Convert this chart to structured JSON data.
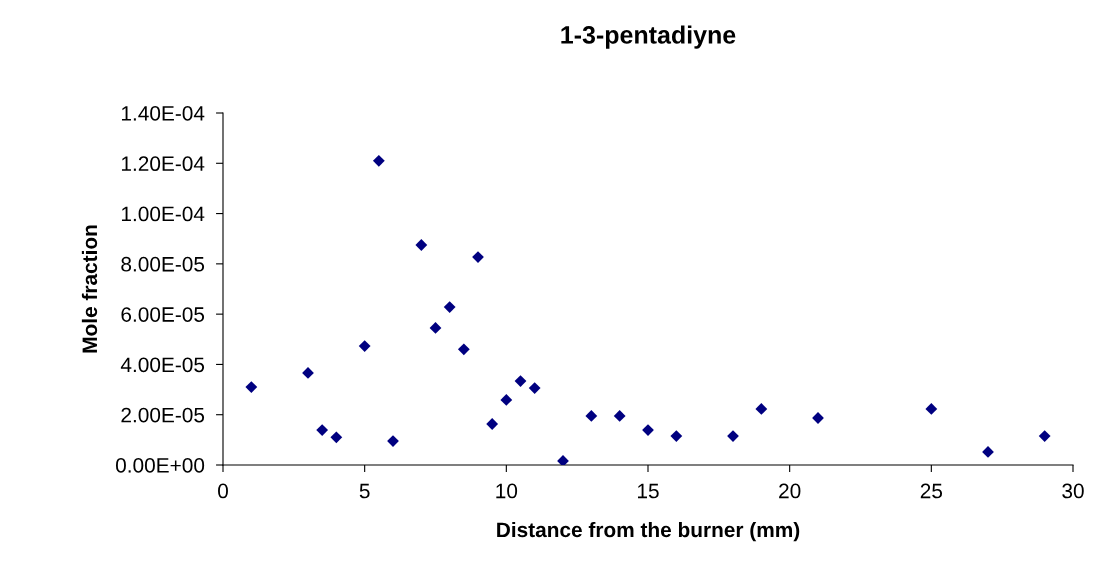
{
  "chart_data": {
    "type": "scatter",
    "title": "1-3-pentadiyne",
    "xlabel": "Distance from the burner (mm)",
    "ylabel": "Mole fraction",
    "x": [
      1,
      3,
      3.5,
      4,
      5,
      5.5,
      6,
      7,
      7.5,
      8,
      8.5,
      9,
      9.5,
      10,
      10.5,
      11,
      12,
      13,
      14,
      15,
      16,
      18,
      19,
      21,
      25,
      27,
      29
    ],
    "series": [
      {
        "color": "#000080",
        "values": [
          3.1e-05,
          3.66e-05,
          1.39e-05,
          1.1e-05,
          4.73e-05,
          0.000121,
          9.5e-06,
          8.75e-05,
          5.45e-05,
          6.28e-05,
          4.6e-05,
          8.27e-05,
          1.63e-05,
          2.59e-05,
          3.34e-05,
          3.06e-05,
          1.6e-06,
          1.95e-05,
          1.95e-05,
          1.39e-05,
          1.15e-05,
          1.15e-05,
          2.23e-05,
          1.87e-05,
          2.23e-05,
          5.2e-06,
          1.15e-05
        ]
      }
    ],
    "xlim": [
      0,
      30
    ],
    "xticks": [
      0,
      5,
      10,
      15,
      20,
      25,
      30
    ],
    "ylim": [
      0,
      0.00014
    ],
    "yticks": [
      {
        "value": 0,
        "label": "0.00E+00"
      },
      {
        "value": 2e-05,
        "label": "2.00E-05"
      },
      {
        "value": 4e-05,
        "label": "4.00E-05"
      },
      {
        "value": 6e-05,
        "label": "6.00E-05"
      },
      {
        "value": 8e-05,
        "label": "8.00E-05"
      },
      {
        "value": 0.0001,
        "label": "1.00E-04"
      },
      {
        "value": 0.00012,
        "label": "1.20E-04"
      },
      {
        "value": 0.00014,
        "label": "1.40E-04"
      }
    ],
    "marker": "diamond",
    "grid": false
  }
}
